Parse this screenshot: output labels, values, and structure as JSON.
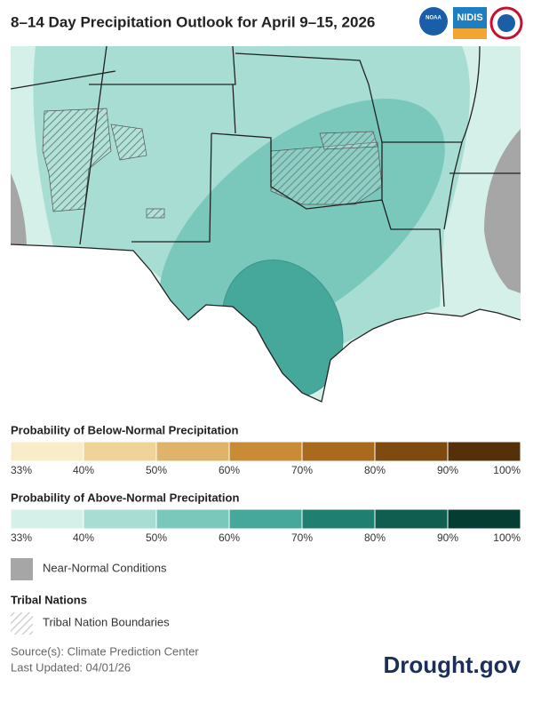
{
  "header": {
    "title": "8–14 Day Precipitation Outlook for April 9–15, 2026",
    "logos": [
      "NOAA",
      "NIDIS"
    ]
  },
  "legend_below": {
    "title": "Probability of Below-Normal Precipitation",
    "labels": [
      "33%",
      "40%",
      "50%",
      "60%",
      "70%",
      "80%",
      "90%",
      "100%"
    ],
    "colors": [
      "#f9ecc8",
      "#efd49a",
      "#dfb46a",
      "#c98b35",
      "#a96a1e",
      "#7f4a10",
      "#55300a"
    ]
  },
  "legend_above": {
    "title": "Probability of Above-Normal Precipitation",
    "labels": [
      "33%",
      "40%",
      "50%",
      "60%",
      "70%",
      "80%",
      "90%",
      "100%"
    ],
    "colors": [
      "#d5efe9",
      "#a7ddd2",
      "#7ac7bb",
      "#45a89a",
      "#1f7f70",
      "#0f5e50",
      "#063d32"
    ]
  },
  "near_normal": {
    "label": "Near-Normal Conditions",
    "color": "#a6a6a6"
  },
  "tribal": {
    "title": "Tribal Nations",
    "label": "Tribal Nation Boundaries"
  },
  "footer": {
    "source": "Source(s): Climate Prediction Center",
    "updated": "Last Updated: 04/01/26",
    "brand": "Drought.gov"
  }
}
